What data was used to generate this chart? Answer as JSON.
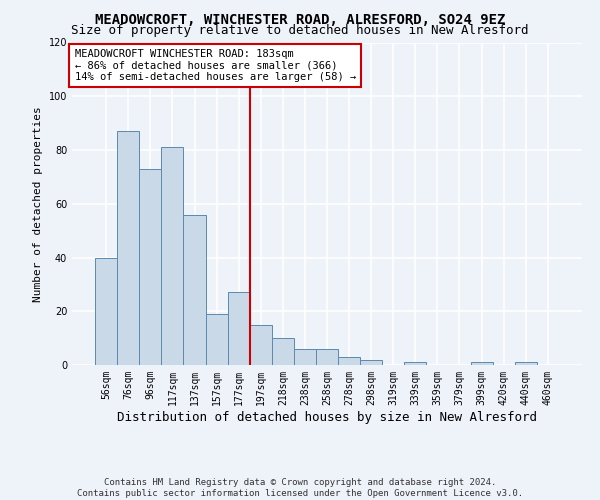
{
  "title": "MEADOWCROFT, WINCHESTER ROAD, ALRESFORD, SO24 9EZ",
  "subtitle": "Size of property relative to detached houses in New Alresford",
  "xlabel": "Distribution of detached houses by size in New Alresford",
  "ylabel": "Number of detached properties",
  "footer_line1": "Contains HM Land Registry data © Crown copyright and database right 2024.",
  "footer_line2": "Contains public sector information licensed under the Open Government Licence v3.0.",
  "categories": [
    "56sqm",
    "76sqm",
    "96sqm",
    "117sqm",
    "137sqm",
    "157sqm",
    "177sqm",
    "197sqm",
    "218sqm",
    "238sqm",
    "258sqm",
    "278sqm",
    "298sqm",
    "319sqm",
    "339sqm",
    "359sqm",
    "379sqm",
    "399sqm",
    "420sqm",
    "440sqm",
    "460sqm"
  ],
  "values": [
    40,
    87,
    73,
    81,
    56,
    19,
    27,
    15,
    10,
    6,
    6,
    3,
    2,
    0,
    1,
    0,
    0,
    1,
    0,
    1,
    0
  ],
  "bar_color": "#c9d9e8",
  "bar_edge_color": "#5a8ab0",
  "vline_x": 6.5,
  "vline_color": "#cc0000",
  "annotation_text": "MEADOWCROFT WINCHESTER ROAD: 183sqm\n← 86% of detached houses are smaller (366)\n14% of semi-detached houses are larger (58) →",
  "annotation_box_color": "#ffffff",
  "annotation_box_edge": "#cc0000",
  "ylim": [
    0,
    120
  ],
  "yticks": [
    0,
    20,
    40,
    60,
    80,
    100,
    120
  ],
  "background_color": "#eef2f9",
  "grid_color": "#ffffff",
  "title_fontsize": 10,
  "subtitle_fontsize": 9,
  "xlabel_fontsize": 9,
  "ylabel_fontsize": 8,
  "tick_fontsize": 7,
  "annotation_fontsize": 7.5,
  "footer_fontsize": 6.5
}
